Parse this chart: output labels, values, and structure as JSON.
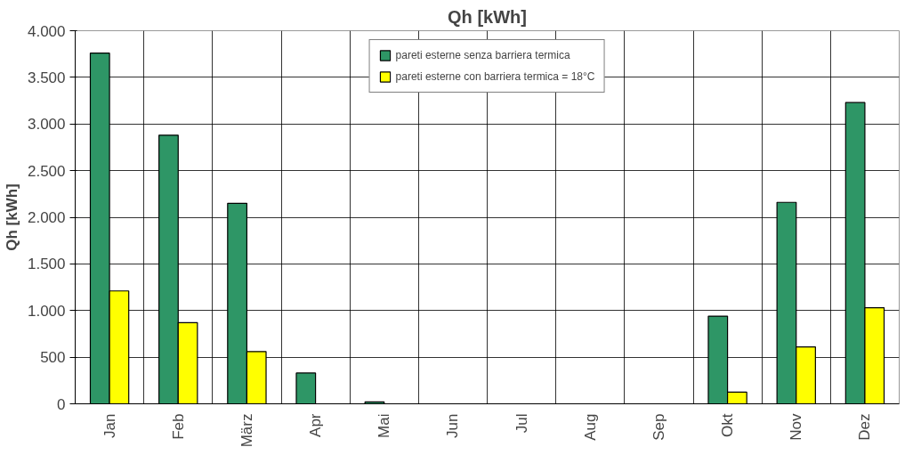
{
  "chart_data": {
    "type": "bar",
    "title": "Qh [kWh]",
    "ylabel": "Qh [kWh]",
    "categories": [
      "Jan",
      "Feb",
      "März",
      "Apr",
      "Mai",
      "Jun",
      "Jul",
      "Aug",
      "Sep",
      "Okt",
      "Nov",
      "Dez"
    ],
    "series": [
      {
        "name": "pareti esterne senza barriera termica",
        "color": "#2e9666",
        "values": [
          3760,
          2880,
          2150,
          330,
          20,
          0,
          0,
          0,
          0,
          940,
          2160,
          3230
        ]
      },
      {
        "name": "pareti esterne con barriera termica = 18°C",
        "color": "#ffff00",
        "values": [
          1210,
          870,
          560,
          0,
          0,
          0,
          0,
          0,
          0,
          125,
          610,
          1030
        ]
      }
    ],
    "ylim": [
      0,
      4000
    ],
    "yticks": [
      0,
      500,
      {
        "value": 1000,
        "label": "1.000"
      },
      {
        "value": 1500,
        "label": "1.500"
      },
      {
        "value": 2000,
        "label": "2.000"
      },
      {
        "value": 2500,
        "label": "2.500"
      },
      {
        "value": 3000,
        "label": "3.000"
      },
      {
        "value": 3500,
        "label": "3.500"
      },
      {
        "value": 4000,
        "label": "4.000"
      }
    ],
    "grid": true,
    "legend": "top"
  }
}
